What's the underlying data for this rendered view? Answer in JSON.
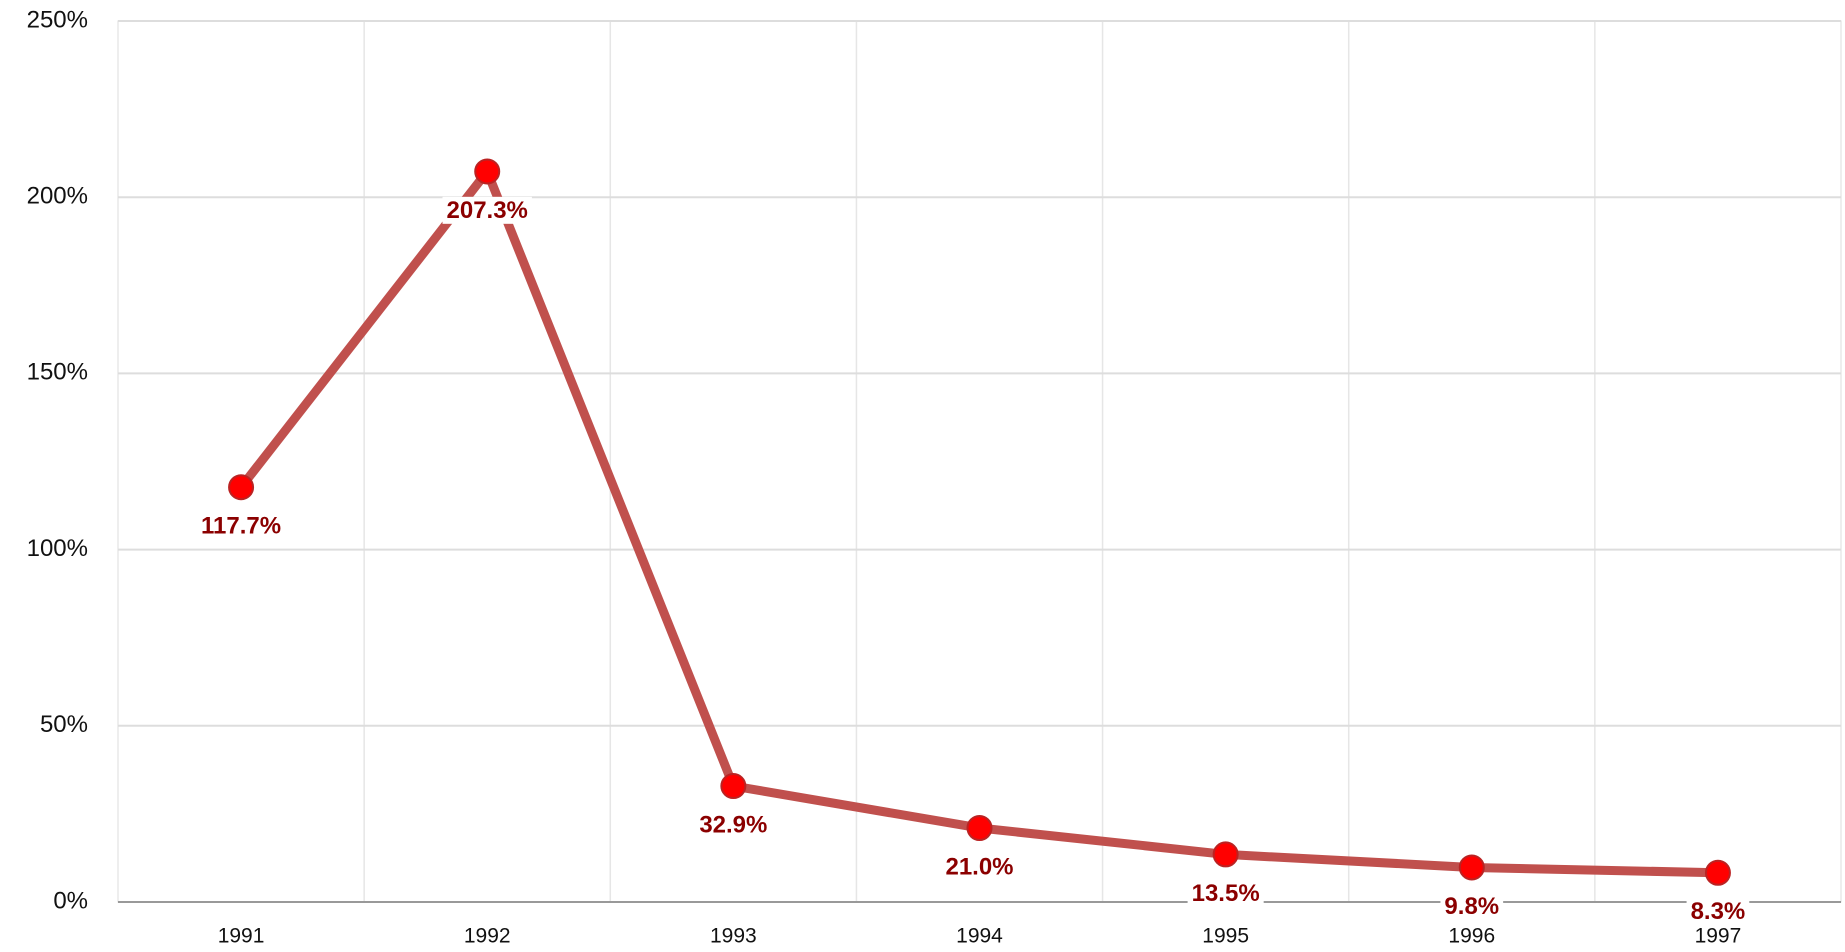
{
  "chart_data": {
    "type": "line",
    "categories": [
      "1991",
      "1992",
      "1993",
      "1994",
      "1995",
      "1996",
      "1997"
    ],
    "series": [
      {
        "color": "#c0504d",
        "marker_color": "#ff0000",
        "label_color": "#8b0000",
        "values": [
          117.7,
          207.3,
          32.9,
          21.0,
          13.5,
          9.8,
          8.3
        ],
        "value_labels": [
          "117.7%",
          "207.3%",
          "32.9%",
          "21.0%",
          "13.5%",
          "9.8%",
          "8.3%"
        ]
      }
    ],
    "ylim": [
      0,
      250
    ],
    "yticks": [
      {
        "value": 0,
        "label": "0%"
      },
      {
        "value": 50,
        "label": "50%"
      },
      {
        "value": 100,
        "label": "100%"
      },
      {
        "value": 150,
        "label": "150%"
      },
      {
        "value": 200,
        "label": "200%"
      },
      {
        "value": 250,
        "label": "250%"
      }
    ],
    "grid": true
  }
}
